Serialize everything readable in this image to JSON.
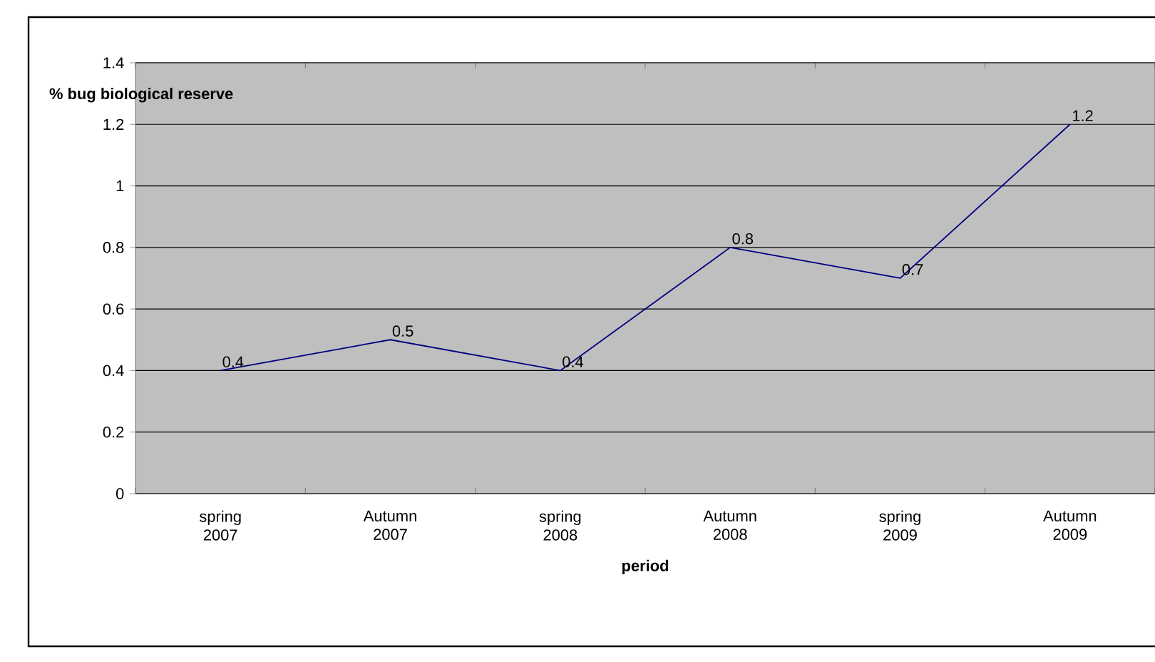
{
  "chart_data": {
    "type": "line",
    "xlabel": "period",
    "ylabel": "% bug biological reserve",
    "categories": [
      "spring 2007",
      "Autumn 2007",
      "spring 2008",
      "Autumn 2008",
      "spring 2009",
      "Autumn 2009"
    ],
    "values": [
      0.4,
      0.5,
      0.4,
      0.8,
      0.7,
      1.2
    ],
    "color": "#000080",
    "ylim": [
      0,
      1.4
    ],
    "yticks": [
      0,
      0.2,
      0.4,
      0.6,
      0.8,
      1,
      1.2,
      1.4
    ],
    "grid": "y",
    "marker": "none",
    "line_style": "solid",
    "data_labels": true
  }
}
